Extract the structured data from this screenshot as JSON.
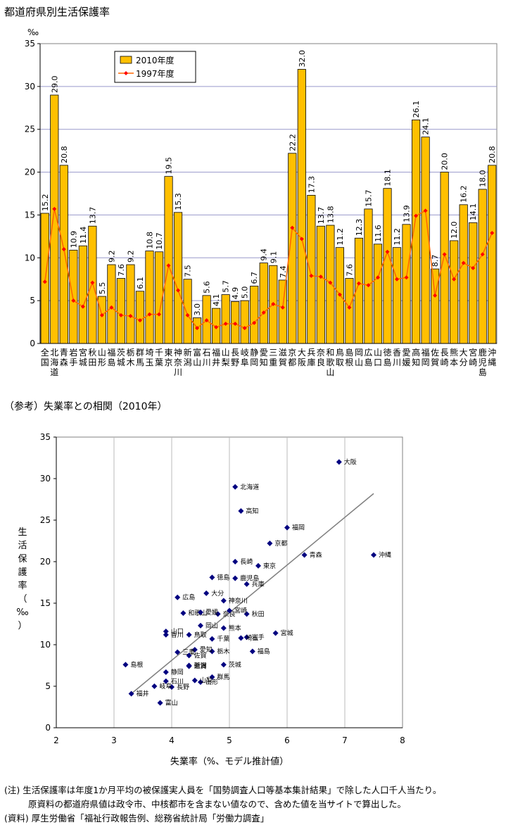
{
  "title": "都道府県別生活保護率",
  "subtitle": "（参考）失業率との相関（2010年）",
  "notes": [
    "(注) 生活保護率は年度1か月平均の被保護実人員を「国勢調査人口等基本集計結果」で除した人口千人当たり。",
    "原資料の都道府県値は政令市、中核都市を含まない値なので、含めた値を当サイトで算出した。",
    "(資料) 厚生労働省「福祉行政報告例、総務省統計局「労働力調査」"
  ],
  "colors": {
    "bar": "#FFC000",
    "bar_stroke": "#000000",
    "line": "#FF6600",
    "marker": "#FF0000",
    "grid": "#9999CC",
    "scatter": "#000080",
    "trend": "#808080"
  },
  "chart_data": [
    {
      "type": "bar",
      "unit_label": "‰",
      "ylim": [
        0,
        35
      ],
      "yticks": [
        0,
        5,
        10,
        15,
        20,
        25,
        30,
        35
      ],
      "legend_placement": "top-left",
      "categories": [
        "全国",
        "北海道",
        "青森",
        "岩手",
        "宮城",
        "秋田",
        "山形",
        "福島",
        "茨城",
        "栃木",
        "群馬",
        "埼玉",
        "千葉",
        "東京",
        "神奈川",
        "新潟",
        "富山",
        "石川",
        "福井",
        "山梨",
        "長野",
        "岐阜",
        "静岡",
        "愛知",
        "三重",
        "滋賀",
        "京都",
        "大阪",
        "兵庫",
        "奈良",
        "和歌山",
        "鳥取",
        "島根",
        "岡山",
        "広島",
        "山口",
        "徳島",
        "香川",
        "愛媛",
        "高知",
        "福岡",
        "佐賀",
        "長崎",
        "熊本",
        "大分",
        "宮崎",
        "鹿児島",
        "沖縄"
      ],
      "series": [
        {
          "name": "2010年度",
          "kind": "bar",
          "values": [
            15.2,
            29.0,
            20.8,
            10.9,
            11.4,
            13.7,
            5.5,
            9.2,
            7.6,
            9.2,
            6.1,
            10.8,
            10.7,
            19.5,
            15.3,
            7.5,
            3.0,
            5.6,
            4.1,
            5.7,
            4.9,
            5.0,
            6.7,
            9.4,
            9.1,
            7.4,
            22.2,
            32.0,
            17.3,
            13.7,
            13.8,
            11.2,
            7.6,
            12.3,
            15.7,
            11.6,
            18.1,
            11.2,
            13.9,
            26.1,
            24.1,
            8.7,
            20.0,
            12.0,
            16.2,
            14.1,
            18.0,
            20.8
          ]
        },
        {
          "name": "1997年度",
          "kind": "line",
          "values": [
            7.2,
            15.7,
            11.0,
            5.0,
            4.3,
            7.1,
            3.3,
            4.2,
            3.3,
            3.2,
            2.7,
            3.4,
            3.4,
            9.1,
            6.2,
            3.3,
            1.8,
            2.7,
            1.9,
            2.3,
            2.3,
            1.8,
            2.4,
            3.6,
            4.6,
            4.2,
            13.5,
            12.2,
            7.9,
            7.8,
            7.1,
            5.7,
            4.2,
            7.0,
            6.8,
            7.7,
            10.7,
            7.5,
            7.7,
            14.9,
            15.5,
            5.6,
            10.4,
            7.5,
            9.4,
            8.8,
            10.4,
            12.9
          ]
        }
      ]
    },
    {
      "type": "scatter",
      "xlabel": "失業率（%、モデル推計値）",
      "ylabel": "生活保護率（‰）",
      "xlim": [
        2,
        8
      ],
      "ylim": [
        0,
        35
      ],
      "xticks": [
        2,
        3,
        4,
        5,
        6,
        7,
        8
      ],
      "yticks": [
        0,
        5,
        10,
        15,
        20,
        25,
        30,
        35
      ],
      "trendline": [
        [
          3.3,
          4.1
        ],
        [
          7.5,
          28.2
        ]
      ],
      "points": [
        {
          "label": "北海道",
          "x": 5.1,
          "y": 29.0
        },
        {
          "label": "青森",
          "x": 6.3,
          "y": 20.8
        },
        {
          "label": "岩手",
          "x": 5.3,
          "y": 10.9
        },
        {
          "label": "宮城",
          "x": 5.8,
          "y": 11.4
        },
        {
          "label": "秋田",
          "x": 5.3,
          "y": 13.7
        },
        {
          "label": "山形",
          "x": 4.5,
          "y": 5.5
        },
        {
          "label": "福島",
          "x": 5.4,
          "y": 9.2
        },
        {
          "label": "茨城",
          "x": 4.9,
          "y": 7.6
        },
        {
          "label": "栃木",
          "x": 4.7,
          "y": 9.2
        },
        {
          "label": "群馬",
          "x": 4.7,
          "y": 6.1
        },
        {
          "label": "埼玉",
          "x": 5.2,
          "y": 10.8
        },
        {
          "label": "千葉",
          "x": 4.7,
          "y": 10.7
        },
        {
          "label": "東京",
          "x": 5.5,
          "y": 19.5
        },
        {
          "label": "神奈川",
          "x": 4.9,
          "y": 15.3
        },
        {
          "label": "新潟",
          "x": 4.3,
          "y": 7.5
        },
        {
          "label": "富山",
          "x": 3.8,
          "y": 3.0
        },
        {
          "label": "石川",
          "x": 3.9,
          "y": 5.6
        },
        {
          "label": "福井",
          "x": 3.3,
          "y": 4.1
        },
        {
          "label": "山梨",
          "x": 4.4,
          "y": 5.7
        },
        {
          "label": "長野",
          "x": 4.0,
          "y": 4.9
        },
        {
          "label": "岐阜",
          "x": 3.7,
          "y": 5.0
        },
        {
          "label": "静岡",
          "x": 3.9,
          "y": 6.7
        },
        {
          "label": "愛知",
          "x": 4.4,
          "y": 9.4
        },
        {
          "label": "三重",
          "x": 4.1,
          "y": 9.1
        },
        {
          "label": "滋賀",
          "x": 4.3,
          "y": 7.4
        },
        {
          "label": "京都",
          "x": 5.7,
          "y": 22.2
        },
        {
          "label": "大阪",
          "x": 6.9,
          "y": 32.0
        },
        {
          "label": "兵庫",
          "x": 5.3,
          "y": 17.3
        },
        {
          "label": "奈良",
          "x": 4.8,
          "y": 13.7
        },
        {
          "label": "和歌山",
          "x": 4.2,
          "y": 13.8
        },
        {
          "label": "鳥取",
          "x": 4.3,
          "y": 11.2
        },
        {
          "label": "島根",
          "x": 3.2,
          "y": 7.6
        },
        {
          "label": "岡山",
          "x": 4.5,
          "y": 12.3
        },
        {
          "label": "広島",
          "x": 4.1,
          "y": 15.7
        },
        {
          "label": "山口",
          "x": 3.9,
          "y": 11.6
        },
        {
          "label": "徳島",
          "x": 4.7,
          "y": 18.1
        },
        {
          "label": "香川",
          "x": 3.9,
          "y": 11.2
        },
        {
          "label": "愛媛",
          "x": 4.5,
          "y": 13.9
        },
        {
          "label": "高知",
          "x": 5.2,
          "y": 26.1
        },
        {
          "label": "福岡",
          "x": 6.0,
          "y": 24.1
        },
        {
          "label": "佐賀",
          "x": 4.3,
          "y": 8.7
        },
        {
          "label": "長崎",
          "x": 5.1,
          "y": 20.0
        },
        {
          "label": "熊本",
          "x": 4.9,
          "y": 12.0
        },
        {
          "label": "大分",
          "x": 4.6,
          "y": 16.2
        },
        {
          "label": "宮崎",
          "x": 5.0,
          "y": 14.1
        },
        {
          "label": "鹿児島",
          "x": 5.1,
          "y": 18.0
        },
        {
          "label": "沖縄",
          "x": 7.5,
          "y": 20.8
        }
      ]
    }
  ]
}
